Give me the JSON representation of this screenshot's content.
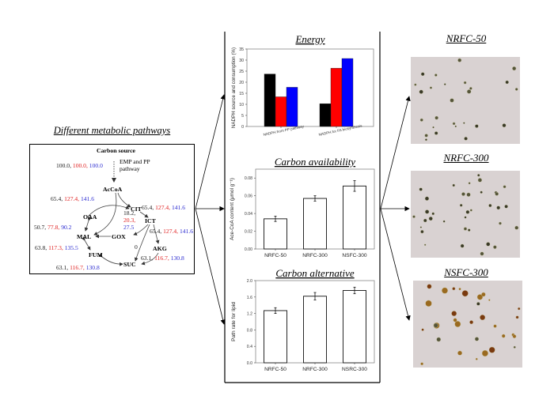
{
  "pathways": {
    "title": "Different metabolic pathways",
    "carbon_source": "Carbon source",
    "emp_pp": [
      "EMP and PP",
      "pathway"
    ],
    "nodes": {
      "accoa": "AcCoA",
      "cit": "CIT",
      "ict": "ICT",
      "oaa": "OAA",
      "mal": "MAL",
      "gox": "GOX",
      "akg": "AKG",
      "fum": "FUM",
      "suc": "SUC"
    },
    "fluxes": {
      "source": [
        "100.0,",
        "100.0,",
        "100.0"
      ],
      "accoa_cit": [
        "65.4,",
        "127.4,",
        "141.6"
      ],
      "cit_ict": [
        "65.4,",
        "127.4,",
        "141.6"
      ],
      "ict_akg": [
        "65.4,",
        "127.4,",
        "141.6"
      ],
      "gox": [
        "18.2,",
        "20.3,",
        "27.5"
      ],
      "oaa_mal": [
        "50.7,",
        "77.8,",
        "90.2"
      ],
      "mal_fum": [
        "63.8,",
        "117.3,",
        "135.5"
      ],
      "akg_suc": [
        "63.1,",
        "116.7,",
        "130.8"
      ],
      "fum_suc": [
        "63.1,",
        "116.7,",
        "130.8"
      ],
      "ict_suc": "0"
    },
    "colors": {
      "nrfc50": "#1a1a1a",
      "nrfc300": "#e02020",
      "nsfc300": "#2a2ad0"
    }
  },
  "micrographs": [
    {
      "title": "NRFC-50"
    },
    {
      "title": "NRFC-300"
    },
    {
      "title": "NSFC-300"
    }
  ],
  "chart_data": [
    {
      "type": "bar",
      "title": "Energy",
      "categories": [
        "NADPH from PP pathway",
        "NADPH for FA biosynthesis"
      ],
      "series": [
        {
          "name": "NRFC-50",
          "color": "#000000",
          "values": [
            23.7,
            10.3
          ]
        },
        {
          "name": "NRFC-300",
          "color": "#ff0000",
          "values": [
            13.4,
            26.3
          ]
        },
        {
          "name": "NSFC-300",
          "color": "#0000ff",
          "values": [
            17.7,
            30.7
          ]
        }
      ],
      "xlabel": "",
      "ylabel": "NADPH source and consumption (%)",
      "ylim": [
        0,
        35
      ],
      "yticks": [
        "0",
        "5",
        "10",
        "15",
        "20",
        "25",
        "30",
        "35"
      ],
      "ytick_values": [
        0,
        5,
        10,
        15,
        20,
        25,
        30,
        35
      ],
      "grid": false
    },
    {
      "type": "bar",
      "title": "Carbon availability",
      "categories": [
        "NRFC-50",
        "NRFC-300",
        "NSFC-300"
      ],
      "values": [
        0.034,
        0.057,
        0.071
      ],
      "errors": [
        0.003,
        0.003,
        0.006
      ],
      "xlabel": "",
      "ylabel": "Ace-CoA content (μmol g⁻¹)",
      "ylim": [
        0,
        0.09
      ],
      "yticks": [
        "0.00",
        "0.02",
        "0.04",
        "0.06",
        "0.08"
      ],
      "ytick_values": [
        0,
        0.02,
        0.04,
        0.06,
        0.08
      ],
      "grid": false
    },
    {
      "type": "bar",
      "title": "Carbon alternative",
      "categories": [
        "NRFC-50",
        "NRFC-300",
        "NSRC-300"
      ],
      "values": [
        1.27,
        1.62,
        1.76
      ],
      "errors": [
        0.07,
        0.09,
        0.08
      ],
      "xlabel": "",
      "ylabel": "Path rate for lipid",
      "ylim": [
        0,
        2.0
      ],
      "yticks": [
        "0.0",
        "0.4",
        "0.8",
        "1.2",
        "1.6",
        "2.0"
      ],
      "ytick_values": [
        0,
        0.4,
        0.8,
        1.2,
        1.6,
        2.0
      ],
      "grid": false
    }
  ]
}
